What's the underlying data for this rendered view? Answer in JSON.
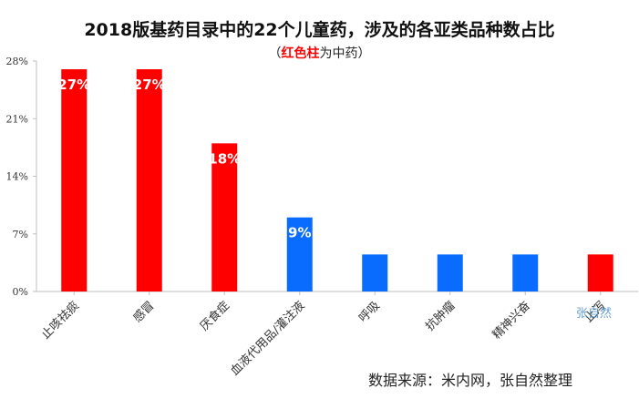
{
  "title": "2018版基药目录中的22个儿童药，涉及的各亚类品种数占比",
  "subtitle": {
    "open": "（",
    "highlight": "红色柱",
    "rest": "为中药",
    "close": "）"
  },
  "source": "数据来源：米内网，张自然整理",
  "watermark": "张自然",
  "colors": {
    "tcm": "#ff0000",
    "western": "#0a6cff",
    "axis": "#bfbfbf",
    "tick_text": "#333333",
    "label_text": "#ffffff"
  },
  "chart_data": {
    "type": "bar",
    "categories": [
      "止咳祛痰",
      "感冒",
      "厌食症",
      "血液代用品/灌注液",
      "呼吸",
      "抗肿瘤",
      "精神兴奋",
      "止泻"
    ],
    "values": [
      27,
      27,
      18,
      9,
      4.5,
      4.5,
      4.5,
      4.5
    ],
    "data_labels": [
      "27%",
      "27%",
      "18%",
      "9%",
      "",
      "",
      "",
      ""
    ],
    "bar_types": [
      "tcm",
      "tcm",
      "tcm",
      "western",
      "western",
      "western",
      "western",
      "tcm"
    ],
    "y_ticks": [
      "0%",
      "7%",
      "14%",
      "21%",
      "28%"
    ],
    "y_tick_values": [
      0,
      7,
      14,
      21,
      28
    ],
    "ylim": [
      0,
      28
    ],
    "grid": false,
    "legend": "none"
  }
}
